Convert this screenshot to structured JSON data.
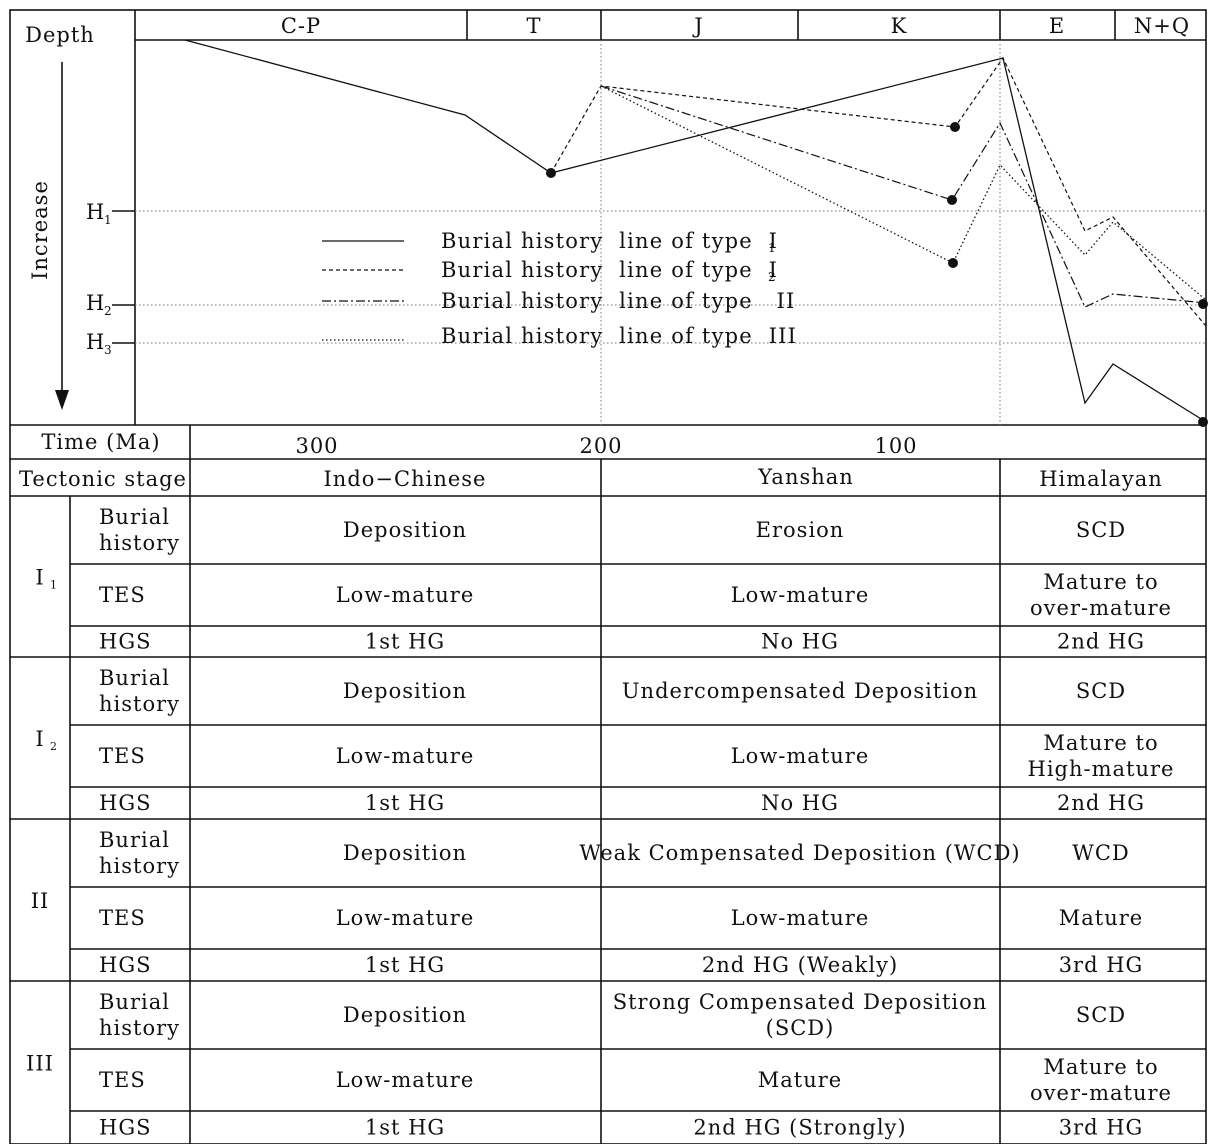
{
  "axis": {
    "depth_label": "Depth",
    "increase_label": "Increase",
    "time_label": "Time (Ma)",
    "time_ticks": [
      "300",
      "200",
      "100"
    ],
    "depth_markers": [
      {
        "name": "H",
        "sub": "1"
      },
      {
        "name": "H",
        "sub": "2"
      },
      {
        "name": "H",
        "sub": "3"
      }
    ]
  },
  "periods": [
    "C-P",
    "T",
    "J",
    "K",
    "E",
    "N+Q"
  ],
  "legend": [
    {
      "text": "Burial history  line of type  I",
      "sub": "1",
      "style": "solid"
    },
    {
      "text": "Burial history  line of type  I",
      "sub": "2",
      "style": "dashed"
    },
    {
      "text": "Burial history  line of type   II",
      "sub": "",
      "style": "dashdot"
    },
    {
      "text": "Burial history  line of type  III",
      "sub": "",
      "style": "dotted"
    }
  ],
  "table": {
    "header_label": "Tectonic stage",
    "stages": [
      "Indo−Chinese",
      "Yanshan",
      "Himalayan"
    ],
    "row_labels": [
      "Burial history",
      "TES",
      "HGS"
    ],
    "groups": [
      {
        "label": "I",
        "sub": "1",
        "rows": [
          [
            "Deposition",
            "Erosion",
            "SCD"
          ],
          [
            "Low-mature",
            "Low-mature",
            "Mature to over-mature"
          ],
          [
            "1st HG",
            "No HG",
            "2nd HG"
          ]
        ]
      },
      {
        "label": "I",
        "sub": "2",
        "rows": [
          [
            "Deposition",
            "Undercompensated Deposition",
            "SCD"
          ],
          [
            "Low-mature",
            "Low-mature",
            "Mature to High-mature"
          ],
          [
            "1st HG",
            "No HG",
            "2nd HG"
          ]
        ]
      },
      {
        "label": "II",
        "sub": "",
        "rows": [
          [
            "Deposition",
            "Weak Compensated Deposition (WCD)",
            "WCD"
          ],
          [
            "Low-mature",
            "Low-mature",
            "Mature"
          ],
          [
            "1st HG",
            "2nd HG (Weakly)",
            "3rd HG"
          ]
        ]
      },
      {
        "label": "III",
        "sub": "",
        "rows": [
          [
            "Deposition",
            "Strong Compensated Deposition (SCD)",
            "SCD"
          ],
          [
            "Low-mature",
            "Mature",
            "Mature to over-mature"
          ],
          [
            "1st HG",
            "2nd HG (Strongly)",
            "3rd HG"
          ]
        ]
      }
    ]
  }
}
